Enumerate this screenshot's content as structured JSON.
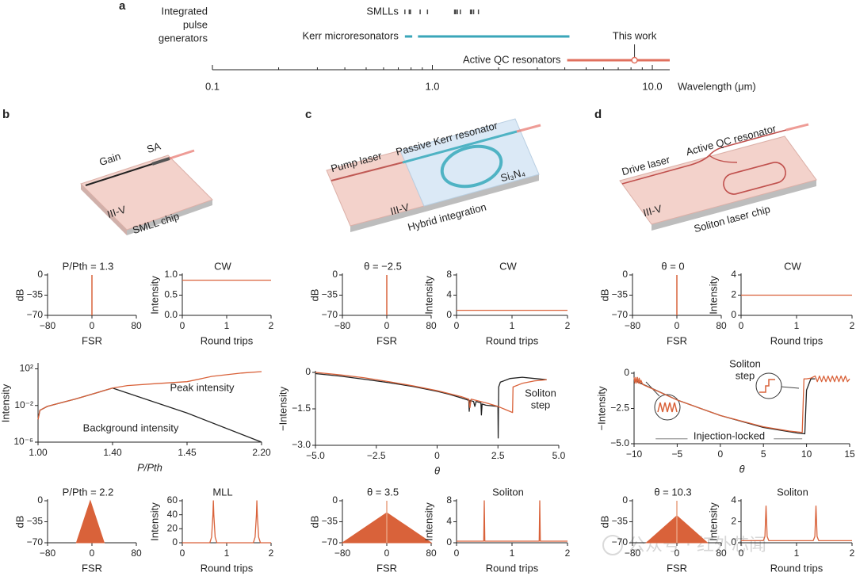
{
  "panel_labels": [
    "a",
    "b",
    "c",
    "d"
  ],
  "diagrams": {
    "b": [
      "Gain",
      "SA",
      "III-V",
      "SMLL chip"
    ],
    "c": [
      "Pump laser",
      "Passive Kerr resonator",
      "Si₃N₄",
      "III-V",
      "Hybrid integration"
    ],
    "d": [
      "Drive laser",
      "Active QC resonator",
      "III-V",
      "Soliton laser chip"
    ]
  },
  "watermark": "公众号 · 红外芯闻",
  "chart_data": [
    {
      "type": "range",
      "heading": [
        "Integrated",
        "pulse",
        "generators"
      ],
      "xlabel": "Wavelength (μm)",
      "xscale": "log",
      "xlim": [
        0.1,
        12
      ],
      "xticks": [
        0.1,
        {
          "value": 1,
          "label": "1.0"
        },
        {
          "value": 10,
          "label": "10.0"
        }
      ],
      "minor_xticks": [
        0.2,
        0.3,
        0.4,
        0.5,
        0.6,
        0.7,
        0.8,
        0.9,
        2,
        3,
        4,
        5,
        6,
        7,
        8,
        9
      ],
      "series": [
        {
          "name": "SMLLs",
          "color": "#4a4a4a",
          "marks": [
            0.75,
            0.79,
            0.88,
            0.95,
            1.27,
            1.3,
            1.34,
            1.5,
            1.54,
            1.62
          ]
        },
        {
          "name": "Kerr microresonators",
          "color": "#3aa6b9",
          "ranges": [
            [
              0.75,
              0.81
            ],
            [
              0.86,
              4.2
            ]
          ]
        },
        {
          "name": "Active QC resonators",
          "color": "#e0705e",
          "ranges": [
            [
              4.1,
              12
            ]
          ],
          "highlight": {
            "label": "This work",
            "value": 8.3
          }
        }
      ]
    },
    {
      "type": "stem",
      "title": "P/Pth = 1.3",
      "xlabel": "FSR",
      "ylabel": "dB",
      "xlim": [
        -80,
        80
      ],
      "xticks": [
        {
          "value": -80,
          "label": "−80"
        },
        0,
        80
      ],
      "ylim": [
        -70,
        0
      ],
      "yticks": [
        0,
        {
          "value": -35,
          "label": "−35"
        },
        {
          "value": -70,
          "label": "−70"
        }
      ],
      "series": [
        {
          "color": "#d9623a",
          "x": [
            0
          ],
          "values": [
            0
          ]
        }
      ]
    },
    {
      "type": "line",
      "title": "CW",
      "xlabel": "Round trips",
      "ylabel": "Intensity",
      "xlim": [
        0,
        2
      ],
      "xticks": [
        0,
        1,
        2
      ],
      "ylim": [
        0,
        1
      ],
      "yticks": [
        {
          "value": 0,
          "label": "0.0"
        },
        {
          "value": 0.5,
          "label": "0.5"
        },
        {
          "value": 1,
          "label": "1.0"
        }
      ],
      "series": [
        {
          "color": "#d9623a",
          "x": [
            0,
            2
          ],
          "values": [
            0.87,
            0.87
          ]
        }
      ]
    },
    {
      "type": "stem",
      "title": "θ = −2.5",
      "xlabel": "FSR",
      "ylabel": "dB",
      "xlim": [
        -80,
        80
      ],
      "xticks": [
        {
          "value": -80,
          "label": "−80"
        },
        0,
        80
      ],
      "ylim": [
        -70,
        0
      ],
      "yticks": [
        0,
        {
          "value": -35,
          "label": "−35"
        },
        {
          "value": -70,
          "label": "−70"
        }
      ],
      "series": [
        {
          "color": "#d9623a",
          "x": [
            0
          ],
          "values": [
            0
          ]
        }
      ]
    },
    {
      "type": "line",
      "title": "CW",
      "xlabel": "Round trips",
      "ylabel": "Intensity",
      "xlim": [
        0,
        2
      ],
      "xticks": [
        0,
        1,
        2
      ],
      "ylim": [
        0,
        8
      ],
      "yticks": [
        0,
        4,
        8
      ],
      "series": [
        {
          "color": "#d9623a",
          "x": [
            0,
            2
          ],
          "values": [
            1,
            1
          ]
        }
      ]
    },
    {
      "type": "stem",
      "title": "θ = 0",
      "xlabel": "FSR",
      "ylabel": "dB",
      "xlim": [
        -80,
        80
      ],
      "xticks": [
        {
          "value": -80,
          "label": "−80"
        },
        0,
        80
      ],
      "ylim": [
        -70,
        0
      ],
      "yticks": [
        0,
        {
          "value": -35,
          "label": "−35"
        },
        {
          "value": -70,
          "label": "−70"
        }
      ],
      "series": [
        {
          "color": "#d9623a",
          "x": [
            0
          ],
          "values": [
            0
          ]
        }
      ]
    },
    {
      "type": "line",
      "title": "CW",
      "xlabel": "Round trips",
      "ylabel": "Intensity",
      "xlim": [
        0,
        2
      ],
      "xticks": [
        0,
        1,
        2
      ],
      "ylim": [
        0,
        4
      ],
      "yticks": [
        0,
        2,
        4
      ],
      "series": [
        {
          "color": "#d9623a",
          "x": [
            0,
            2
          ],
          "values": [
            2,
            2
          ]
        }
      ]
    },
    {
      "type": "line",
      "xlabel": "P/Pth",
      "ylabel": "Intensity",
      "xscale": "piecewise",
      "yscale": "log",
      "xlim": [
        1,
        2.2
      ],
      "xticks": [
        {
          "value": 1,
          "label": "1.00"
        },
        {
          "value": 1.4,
          "label": "1.40"
        },
        {
          "value": 1.45,
          "label": "1.45"
        },
        {
          "value": 2.2,
          "label": "2.20"
        }
      ],
      "ylim": [
        1e-06,
        300
      ],
      "yticks": [
        {
          "value": 100,
          "label": "10²"
        },
        {
          "value": 0.01,
          "label": "10⁻²"
        },
        {
          "value": 1e-06,
          "label": "10⁻⁶"
        }
      ],
      "annotations": [
        [
          "Peak intensity"
        ],
        [
          "Background intensity"
        ]
      ],
      "series": [
        {
          "color": "#222222",
          "x": [
            1.0,
            1.01,
            1.05,
            1.1,
            1.2,
            1.3,
            1.4,
            1.45,
            2.2
          ],
          "values": [
            0.0003,
            0.003,
            0.008,
            0.015,
            0.05,
            0.2,
            0.8,
            0.0015,
            1e-06
          ]
        },
        {
          "color": "#d9623a",
          "x": [
            1.0,
            1.01,
            1.05,
            1.1,
            1.2,
            1.3,
            1.4,
            1.41,
            1.43,
            1.45,
            1.7,
            2.0,
            2.2
          ],
          "values": [
            0.0003,
            0.003,
            0.008,
            0.015,
            0.05,
            0.2,
            0.8,
            1.5,
            2.5,
            4,
            15,
            35,
            50
          ]
        }
      ]
    },
    {
      "type": "line",
      "xlabel": "θ",
      "ylabel": "−Intensity",
      "xlim": [
        -5,
        5
      ],
      "xticks": [
        {
          "value": -5,
          "label": "−5.0"
        },
        {
          "value": -2.5,
          "label": "−2.5"
        },
        0,
        {
          "value": 2.5,
          "label": "2.5"
        },
        {
          "value": 5,
          "label": "5.0"
        }
      ],
      "ylim": [
        -3,
        0
      ],
      "yticks": [
        0,
        {
          "value": -1.5,
          "label": "−1.5"
        },
        {
          "value": -3,
          "label": "−3.0"
        }
      ],
      "annotations": [
        [
          "Soliton",
          "step"
        ]
      ],
      "series": [
        {
          "color": "#222222",
          "x": [
            -5,
            -4,
            -3,
            -2,
            -1,
            0,
            0.5,
            1,
            1.3,
            1.32,
            1.35,
            1.5,
            1.55,
            1.6,
            1.8,
            1.82,
            1.85,
            2,
            2.5,
            2.51,
            2.53,
            2.6,
            3,
            3.5,
            4,
            4.5
          ],
          "values": [
            -0.05,
            -0.15,
            -0.28,
            -0.42,
            -0.58,
            -0.78,
            -0.9,
            -1.05,
            -1.15,
            -1.6,
            -1.15,
            -1.2,
            -1.4,
            -1.2,
            -1.25,
            -1.75,
            -1.3,
            -1.35,
            -1.4,
            -2.7,
            -0.6,
            -0.4,
            -0.25,
            -0.2,
            -0.25,
            -0.3
          ]
        },
        {
          "color": "#d9623a",
          "x": [
            -5,
            -4,
            -3,
            -2,
            -1,
            0,
            1,
            1.3,
            1.35,
            1.4,
            2,
            2.5,
            3.1,
            3.12,
            3.5,
            4,
            4.5
          ],
          "values": [
            0,
            -0.1,
            -0.22,
            -0.38,
            -0.55,
            -0.75,
            -1.0,
            -1.1,
            -1.45,
            -1.1,
            -1.25,
            -1.4,
            -1.65,
            -0.6,
            -0.45,
            -0.35,
            -0.3
          ]
        }
      ]
    },
    {
      "type": "line",
      "xlabel": "θ",
      "ylabel": "−Intensity",
      "xlim": [
        -10,
        15
      ],
      "xticks": [
        {
          "value": -10,
          "label": "−10"
        },
        {
          "value": -5,
          "label": "−5"
        },
        0,
        5,
        10,
        15
      ],
      "ylim": [
        -5,
        0
      ],
      "yticks": [
        0,
        {
          "value": -2.5,
          "label": "−2.5"
        },
        {
          "value": -5,
          "label": "−5.0"
        }
      ],
      "annotations": [
        [
          "Soliton",
          "step"
        ],
        [
          "Injection-locked"
        ]
      ],
      "series": [
        {
          "color": "#999999",
          "x": [
            -7.5,
            -3.8,
            0,
            6.2,
            9.5
          ],
          "values": [
            -4.65,
            -4.65,
            null,
            -4.65,
            -4.65
          ]
        },
        {
          "color": "#222222",
          "x": [
            -10,
            -5,
            0,
            5,
            9,
            9.8,
            10,
            10.5,
            11
          ],
          "values": [
            -0.5,
            -1.9,
            -3.0,
            -3.85,
            -4.25,
            -4.3,
            -1.2,
            -0.4,
            -0.4
          ]
        },
        {
          "color": "#d9623a",
          "x": [
            -10,
            -9.9,
            -9.8,
            -9.7,
            -9.6,
            -9.5,
            -9.4,
            -9.3,
            -9.2,
            -9,
            -5,
            0,
            5,
            8,
            9.5,
            9.7,
            10,
            10.5,
            11,
            11.25,
            11.5,
            11.75,
            12,
            12.25,
            12.5,
            12.75,
            13,
            13.25,
            13.5,
            13.75,
            14,
            14.25,
            14.5,
            14.75,
            15
          ],
          "values": [
            -0.3,
            -0.7,
            -0.3,
            -0.7,
            -0.3,
            -0.7,
            -0.35,
            -0.75,
            -0.5,
            -0.8,
            -1.9,
            -3.0,
            -3.8,
            -4.1,
            -4.2,
            -0.4,
            -0.4,
            -0.35,
            -0.2,
            -0.6,
            -0.2,
            -0.6,
            -0.2,
            -0.6,
            -0.2,
            -0.6,
            -0.2,
            -0.6,
            -0.2,
            -0.6,
            -0.2,
            -0.6,
            -0.2,
            -0.6,
            -0.4
          ]
        }
      ]
    },
    {
      "type": "area",
      "title": "P/Pth = 2.2",
      "xlabel": "FSR",
      "ylabel": "dB",
      "xlim": [
        -80,
        80
      ],
      "xticks": [
        {
          "value": -80,
          "label": "−80"
        },
        0,
        80
      ],
      "ylim": [
        -70,
        0
      ],
      "yticks": [
        0,
        {
          "value": -35,
          "label": "−35"
        },
        {
          "value": -70,
          "label": "−70"
        }
      ],
      "series": [
        {
          "color": "#d9623a",
          "x": [
            -28,
            -3,
            22
          ],
          "values": [
            -70,
            0,
            -70
          ]
        }
      ]
    },
    {
      "type": "line",
      "title": "MLL",
      "xlabel": "Round trips",
      "ylabel": "Intensity",
      "xlim": [
        0,
        2
      ],
      "xticks": [
        0,
        1,
        2
      ],
      "ylim": [
        0,
        60
      ],
      "yticks": [
        0,
        20,
        40,
        60
      ],
      "series": [
        {
          "color": "#d9623a",
          "x": [
            0,
            0.62,
            0.66,
            0.69,
            0.7,
            0.71,
            0.74,
            0.78,
            1.6,
            1.64,
            1.67,
            1.68,
            1.69,
            1.72,
            1.76,
            2
          ],
          "values": [
            0,
            0,
            8,
            40,
            60,
            40,
            8,
            0,
            0,
            8,
            40,
            60,
            40,
            8,
            0,
            0
          ]
        }
      ]
    },
    {
      "type": "area",
      "title": "θ = 3.5",
      "xlabel": "FSR",
      "ylabel": "dB",
      "xlim": [
        -80,
        80
      ],
      "xticks": [
        {
          "value": -80,
          "label": "−80"
        },
        0,
        80
      ],
      "ylim": [
        -70,
        0
      ],
      "yticks": [
        0,
        {
          "value": -35,
          "label": "−35"
        },
        {
          "value": -70,
          "label": "−70"
        }
      ],
      "series": [
        {
          "color": "#d9623a",
          "x": [
            -80,
            0,
            80
          ],
          "values": [
            -70,
            -20,
            -70
          ]
        },
        {
          "type": "stem",
          "color": "#e9a080",
          "x": [
            0
          ],
          "values": [
            0
          ]
        }
      ]
    },
    {
      "type": "line",
      "title": "Soliton",
      "xlabel": "Round trips",
      "ylabel": "Intensity",
      "xlim": [
        0,
        2
      ],
      "xticks": [
        0,
        1,
        2
      ],
      "ylim": [
        0,
        8
      ],
      "yticks": [
        0,
        4,
        8
      ],
      "series": [
        {
          "color": "#d9623a",
          "x": [
            0,
            0.49,
            0.5,
            0.51,
            1.49,
            1.5,
            1.51,
            2
          ],
          "values": [
            0.3,
            0.3,
            8,
            0.3,
            0.3,
            8,
            0.3,
            0.3
          ]
        }
      ]
    },
    {
      "type": "area",
      "title": "θ = 10.3",
      "xlabel": "FSR",
      "ylabel": "dB",
      "xlim": [
        -80,
        80
      ],
      "xticks": [
        {
          "value": -80,
          "label": "−80"
        },
        0,
        80
      ],
      "ylim": [
        -70,
        0
      ],
      "yticks": [
        0,
        {
          "value": -35,
          "label": "−35"
        },
        {
          "value": -70,
          "label": "−70"
        }
      ],
      "series": [
        {
          "color": "#d9623a",
          "x": [
            -55,
            0,
            55
          ],
          "values": [
            -70,
            -25,
            -70
          ]
        },
        {
          "type": "stem",
          "color": "#e9a080",
          "x": [
            0
          ],
          "values": [
            0
          ]
        }
      ]
    },
    {
      "type": "line",
      "title": "Soliton",
      "xlabel": "Round trips",
      "ylabel": "Intensity",
      "xlim": [
        0,
        2
      ],
      "xticks": [
        0,
        1,
        2
      ],
      "ylim": [
        0,
        4
      ],
      "yticks": [
        0,
        2,
        4
      ],
      "series": [
        {
          "color": "#d9623a",
          "x": [
            0,
            0.4,
            0.43,
            0.45,
            0.47,
            0.5,
            1.3,
            1.33,
            1.35,
            1.37,
            1.4,
            2
          ],
          "values": [
            0.2,
            0.2,
            0.6,
            3.5,
            0.6,
            0.2,
            0.2,
            0.6,
            3.5,
            0.6,
            0.2,
            0.2
          ]
        }
      ]
    }
  ]
}
